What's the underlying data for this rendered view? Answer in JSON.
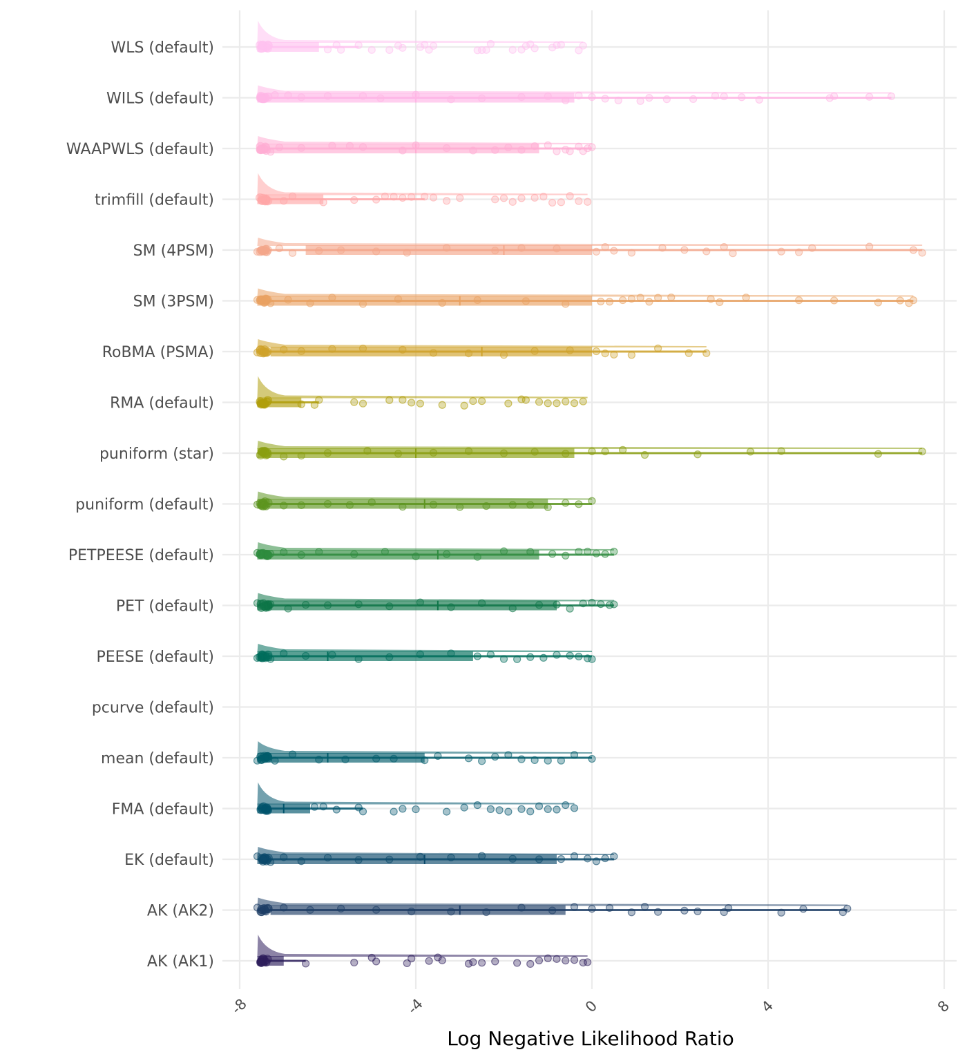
{
  "chart_data": {
    "type": "raincloud",
    "title": "",
    "xlabel": "Log Negative Likelihood Ratio",
    "ylabel": "",
    "xlim": [
      -8.0,
      8.0
    ],
    "xticks": [
      -8,
      -4,
      0,
      4,
      8
    ],
    "xtick_labels": [
      "-8",
      "-4",
      "0",
      "4",
      "8"
    ],
    "grid": true,
    "legend": "none",
    "categories": [
      "WLS (default)",
      "WILS (default)",
      "WAAPWLS (default)",
      "trimfill (default)",
      "SM (4PSM)",
      "SM (3PSM)",
      "RoBMA (PSMA)",
      "RMA (default)",
      "puniform (star)",
      "puniform (default)",
      "PETPEESE (default)",
      "PET (default)",
      "PEESE (default)",
      "pcurve (default)",
      "mean (default)",
      "FMA (default)",
      "EK (default)",
      "AK (AK2)",
      "AK (AK1)"
    ],
    "series": [
      {
        "name": "WLS (default)",
        "color": "#FFC2F0",
        "min": -7.6,
        "q1": -7.6,
        "median": -7.4,
        "q3": -6.2,
        "max": -0.2,
        "whisker_hi": -5.3,
        "density_peak": -7.5,
        "points": [
          -6.0,
          -5.8,
          -5.7,
          -5.3,
          -5.0,
          -4.6,
          -4.4,
          -4.3,
          -3.9,
          -3.8,
          -3.7,
          -3.6,
          -2.6,
          -2.5,
          -2.4,
          -2.3,
          -1.8,
          -1.6,
          -1.5,
          -1.4,
          -1.3,
          -0.9,
          -0.8,
          -0.7,
          -0.3,
          -0.2
        ]
      },
      {
        "name": "WILS (default)",
        "color": "#FFB6E6",
        "min": -7.6,
        "q1": -7.6,
        "median": -4.0,
        "q3": -0.4,
        "max": 6.8,
        "whisker_hi": 6.8,
        "density_peak": -7.5,
        "points": [
          -7.5,
          -7.2,
          -6.9,
          -6.6,
          -6.0,
          -5.2,
          -4.8,
          -4.0,
          -3.2,
          -2.5,
          -1.6,
          -1.0,
          -0.6,
          -0.3,
          0.0,
          0.3,
          0.6,
          1.1,
          1.3,
          1.7,
          2.3,
          2.8,
          3.0,
          3.4,
          3.8,
          5.4,
          5.5,
          6.3,
          6.8
        ]
      },
      {
        "name": "WAAPWLS (default)",
        "color": "#FFADD3",
        "min": -7.6,
        "q1": -7.6,
        "median": -4.0,
        "q3": -1.2,
        "max": 0.0,
        "whisker_hi": 0.0,
        "density_peak": -7.5,
        "points": [
          -7.3,
          -7.1,
          -6.6,
          -5.9,
          -5.5,
          -5.2,
          -4.3,
          -4.0,
          -3.3,
          -2.7,
          -2.2,
          -1.9,
          -1.6,
          -1.3,
          -1.0,
          -0.8,
          -0.6,
          -0.5,
          -0.3,
          -0.2,
          -0.1,
          0.0
        ]
      },
      {
        "name": "trimfill (default)",
        "color": "#FFA7A8",
        "min": -7.6,
        "q1": -7.6,
        "median": -7.4,
        "q3": -6.1,
        "max": -0.1,
        "whisker_hi": -3.8,
        "density_peak": -7.5,
        "points": [
          -7.0,
          -6.8,
          -6.1,
          -5.4,
          -4.9,
          -4.7,
          -4.5,
          -4.3,
          -4.1,
          -3.8,
          -3.6,
          -3.3,
          -3.0,
          -2.2,
          -2.0,
          -1.8,
          -1.6,
          -1.3,
          -1.1,
          -0.9,
          -0.7,
          -0.5,
          -0.3,
          -0.1
        ]
      },
      {
        "name": "SM (4PSM)",
        "color": "#F4A68A",
        "min": -7.6,
        "q1": -6.5,
        "median": -2.0,
        "q3": 0.0,
        "max": 7.5,
        "whisker_hi": 7.5,
        "density_peak": -7.5,
        "points": [
          -7.6,
          -7.4,
          -7.1,
          -6.8,
          -6.2,
          -5.7,
          -4.9,
          -4.2,
          -3.3,
          -2.2,
          -1.6,
          -0.8,
          0.1,
          0.3,
          0.5,
          0.9,
          1.6,
          2.1,
          2.6,
          3.0,
          3.2,
          4.3,
          4.7,
          5.0,
          6.3,
          7.3,
          7.5
        ]
      },
      {
        "name": "SM (3PSM)",
        "color": "#E9A162",
        "min": -7.6,
        "q1": -7.6,
        "median": -3.0,
        "q3": 0.0,
        "max": 7.3,
        "whisker_hi": 7.3,
        "density_peak": -7.5,
        "points": [
          -7.6,
          -7.3,
          -6.9,
          -6.4,
          -5.9,
          -5.2,
          -4.4,
          -3.4,
          -2.6,
          -1.5,
          -0.6,
          0.2,
          0.4,
          0.7,
          0.9,
          1.1,
          1.3,
          1.5,
          1.8,
          2.7,
          2.9,
          3.5,
          4.7,
          5.5,
          6.5,
          7.0,
          7.2,
          7.3
        ]
      },
      {
        "name": "RoBMA (PSMA)",
        "color": "#CFA22A",
        "min": -7.6,
        "q1": -7.3,
        "median": -2.5,
        "q3": 0.0,
        "max": 2.6,
        "whisker_hi": 2.6,
        "density_peak": -7.5,
        "points": [
          -7.6,
          -7.4,
          -7.0,
          -6.6,
          -5.9,
          -5.2,
          -4.3,
          -3.6,
          -2.8,
          -2.0,
          -1.3,
          -0.5,
          0.1,
          0.3,
          0.5,
          0.9,
          1.5,
          2.2,
          2.6
        ]
      },
      {
        "name": "RMA (default)",
        "color": "#B09E0C",
        "min": -7.6,
        "q1": -7.6,
        "median": -7.4,
        "q3": -6.6,
        "max": -0.1,
        "whisker_hi": -6.2,
        "density_peak": -7.5,
        "points": [
          -6.6,
          -6.3,
          -6.2,
          -5.4,
          -5.2,
          -4.6,
          -4.3,
          -4.1,
          -3.9,
          -3.4,
          -2.9,
          -2.7,
          -2.5,
          -1.9,
          -1.6,
          -1.5,
          -1.2,
          -1.0,
          -0.8,
          -0.6,
          -0.4,
          -0.2
        ]
      },
      {
        "name": "puniform (star)",
        "color": "#8A9F11",
        "min": -7.6,
        "q1": -7.6,
        "median": -4.0,
        "q3": -0.4,
        "max": 7.5,
        "whisker_hi": 7.5,
        "density_peak": -7.5,
        "points": [
          -7.5,
          -7.0,
          -6.6,
          -6.0,
          -5.1,
          -4.4,
          -3.6,
          -2.8,
          -2.0,
          -1.3,
          -0.6,
          0.0,
          0.3,
          0.7,
          1.2,
          2.4,
          3.6,
          4.3,
          6.5,
          7.5
        ]
      },
      {
        "name": "puniform (default)",
        "color": "#5D9520",
        "min": -7.6,
        "q1": -7.6,
        "median": -3.8,
        "q3": -1.0,
        "max": 0.0,
        "whisker_hi": 0.0,
        "density_peak": -7.5,
        "points": [
          -7.6,
          -7.4,
          -7.0,
          -6.6,
          -6.0,
          -5.5,
          -5.0,
          -4.3,
          -3.6,
          -3.0,
          -2.4,
          -1.8,
          -1.4,
          -1.0,
          -0.6,
          -0.3,
          0.0
        ]
      },
      {
        "name": "PETPEESE (default)",
        "color": "#2E8B3E",
        "min": -7.6,
        "q1": -7.6,
        "median": -3.5,
        "q3": -1.2,
        "max": 0.5,
        "whisker_hi": 0.5,
        "density_peak": -7.5,
        "points": [
          -7.6,
          -7.3,
          -7.0,
          -6.6,
          -6.2,
          -5.4,
          -4.7,
          -4.0,
          -3.3,
          -2.6,
          -2.0,
          -1.4,
          -0.9,
          -0.6,
          -0.3,
          -0.1,
          0.1,
          0.3,
          0.5
        ]
      },
      {
        "name": "PET (default)",
        "color": "#0E7548",
        "min": -7.6,
        "q1": -7.6,
        "median": -3.5,
        "q3": -0.8,
        "max": 0.5,
        "whisker_hi": 0.5,
        "density_peak": -7.5,
        "points": [
          -7.6,
          -7.3,
          -6.9,
          -6.5,
          -6.0,
          -5.3,
          -4.6,
          -3.9,
          -3.2,
          -2.5,
          -1.8,
          -1.2,
          -0.8,
          -0.5,
          -0.2,
          0.0,
          0.2,
          0.4,
          0.5
        ]
      },
      {
        "name": "PEESE (default)",
        "color": "#006D5B",
        "min": -7.6,
        "q1": -7.6,
        "median": -6.0,
        "q3": -2.7,
        "max": 0.0,
        "whisker_hi": 0.0,
        "density_peak": -7.5,
        "points": [
          -7.6,
          -7.3,
          -7.0,
          -6.5,
          -5.9,
          -5.3,
          -4.6,
          -3.9,
          -3.2,
          -2.6,
          -2.3,
          -2.0,
          -1.7,
          -1.4,
          -1.1,
          -0.8,
          -0.5,
          -0.3,
          -0.1,
          0.0
        ]
      },
      {
        "name": "pcurve (default)",
        "color": "#005F63",
        "min": null,
        "q1": null,
        "median": null,
        "q3": null,
        "max": null,
        "whisker_hi": null,
        "density_peak": null,
        "points": []
      },
      {
        "name": "mean (default)",
        "color": "#005B6A",
        "min": -7.6,
        "q1": -7.6,
        "median": -6.0,
        "q3": -3.8,
        "max": 0.0,
        "whisker_hi": 0.0,
        "density_peak": -7.5,
        "points": [
          -7.6,
          -7.2,
          -6.8,
          -6.2,
          -5.6,
          -4.9,
          -4.5,
          -3.8,
          -3.5,
          -2.8,
          -2.5,
          -2.2,
          -1.9,
          -1.6,
          -1.3,
          -1.0,
          -0.7,
          -0.4,
          0.0
        ]
      },
      {
        "name": "FMA (default)",
        "color": "#00546C",
        "min": -7.6,
        "q1": -7.6,
        "median": -7.0,
        "q3": -6.4,
        "max": -0.4,
        "whisker_hi": -5.2,
        "density_peak": -7.0,
        "points": [
          -6.3,
          -6.1,
          -5.8,
          -5.3,
          -5.2,
          -4.5,
          -4.3,
          -4.0,
          -3.3,
          -2.9,
          -2.6,
          -2.3,
          -2.1,
          -1.9,
          -1.6,
          -1.4,
          -1.2,
          -1.0,
          -0.8,
          -0.6,
          -0.4
        ]
      },
      {
        "name": "EK (default)",
        "color": "#0C4A6B",
        "min": -7.6,
        "q1": -7.6,
        "median": -3.8,
        "q3": -0.8,
        "max": 0.5,
        "whisker_hi": 0.5,
        "density_peak": -7.5,
        "points": [
          -7.6,
          -7.3,
          -7.0,
          -6.6,
          -6.0,
          -5.3,
          -4.6,
          -3.9,
          -3.2,
          -2.5,
          -1.8,
          -1.2,
          -0.7,
          -0.4,
          -0.1,
          0.1,
          0.3,
          0.5
        ]
      },
      {
        "name": "AK (AK2)",
        "color": "#1E3E66",
        "min": -7.6,
        "q1": -7.3,
        "median": -3.0,
        "q3": -0.6,
        "max": 5.8,
        "whisker_hi": 5.8,
        "density_peak": -7.5,
        "points": [
          -7.6,
          -7.4,
          -7.0,
          -6.4,
          -5.7,
          -4.9,
          -4.1,
          -3.2,
          -2.4,
          -1.6,
          -0.9,
          -0.4,
          0.0,
          0.4,
          0.9,
          1.2,
          1.5,
          2.1,
          2.4,
          3.0,
          3.1,
          4.3,
          4.8,
          5.7,
          5.8
        ]
      },
      {
        "name": "AK (AK1)",
        "color": "#2D1E5C",
        "min": -7.6,
        "q1": -7.6,
        "median": -7.4,
        "q3": -7.0,
        "max": -0.1,
        "whisker_hi": -6.5,
        "density_peak": -7.5,
        "points": [
          -6.5,
          -5.4,
          -5.0,
          -4.9,
          -4.2,
          -4.1,
          -3.7,
          -3.5,
          -3.4,
          -2.8,
          -2.7,
          -2.5,
          -2.2,
          -1.7,
          -1.4,
          -1.2,
          -1.0,
          -0.8,
          -0.6,
          -0.4,
          -0.2,
          -0.1
        ]
      }
    ]
  }
}
